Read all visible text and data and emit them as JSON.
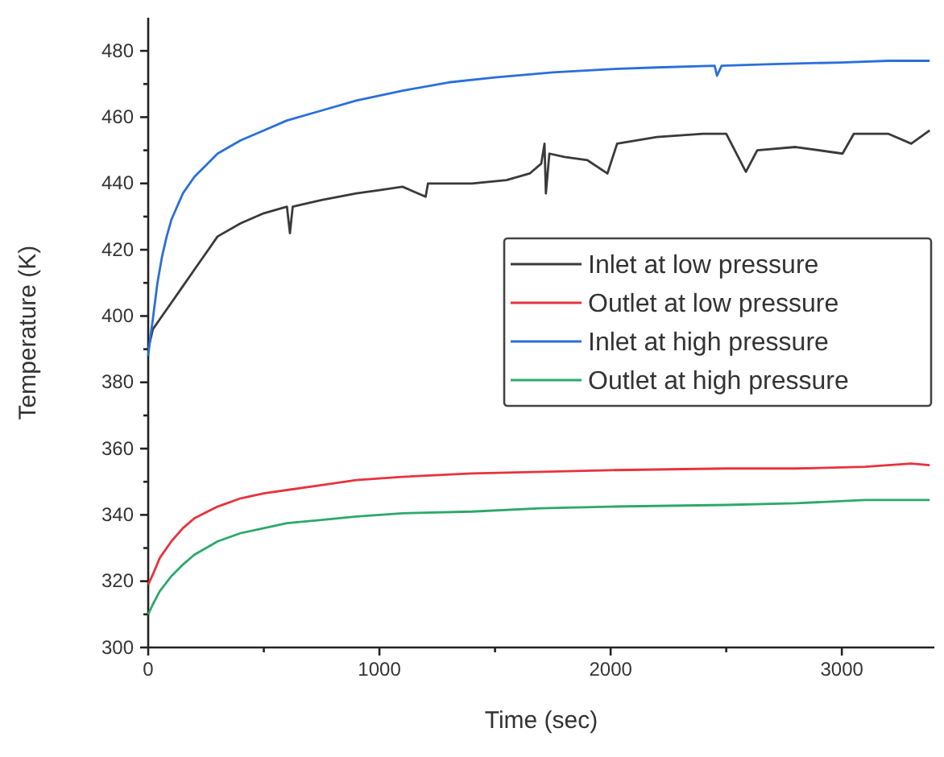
{
  "chart_data": {
    "type": "line",
    "xlabel": "Time (sec)",
    "ylabel": "Temperature (K)",
    "xlim": [
      0,
      3400
    ],
    "ylim": [
      300,
      490
    ],
    "xticks": [
      0,
      {
        "value": 500,
        "label": null
      },
      1000,
      {
        "value": 1500,
        "label": null
      },
      2000,
      {
        "value": 2500,
        "label": null
      },
      3000
    ],
    "yticks": [
      300,
      {
        "value": 310,
        "label": null
      },
      320,
      {
        "value": 330,
        "label": null
      },
      340,
      {
        "value": 350,
        "label": null
      },
      360,
      {
        "value": 370,
        "label": null
      },
      380,
      {
        "value": 390,
        "label": null
      },
      400,
      {
        "value": 410,
        "label": null
      },
      420,
      {
        "value": 430,
        "label": null
      },
      440,
      {
        "value": 450,
        "label": null
      },
      460,
      {
        "value": 470,
        "label": null
      },
      480
    ],
    "grid": false,
    "legend": "right",
    "marker": "none",
    "line_style": "solid",
    "series": [
      {
        "name": "Inlet at low pressure",
        "color": "#3a3a3a",
        "x": [
          0,
          20,
          50,
          100,
          150,
          200,
          250,
          300,
          400,
          500,
          600,
          613,
          625,
          750,
          900,
          1000,
          1100,
          1200,
          1210,
          1300,
          1400,
          1550,
          1650,
          1700,
          1714,
          1720,
          1735,
          1800,
          1900,
          1986,
          2028,
          2200,
          2400,
          2500,
          2585,
          2634,
          2800,
          3003,
          3052,
          3200,
          3300,
          3380
        ],
        "values": [
          390,
          396,
          399,
          404,
          409,
          414,
          419,
          424,
          428,
          431,
          433,
          425,
          433,
          435,
          437,
          438,
          439,
          436,
          440,
          440,
          440,
          441,
          443,
          446,
          452,
          437,
          449,
          448,
          447,
          443,
          452,
          454,
          455,
          455,
          443.5,
          450,
          451,
          449,
          455,
          455,
          452,
          456
        ]
      },
      {
        "name": "Outlet at low pressure",
        "color": "#e8323c",
        "x": [
          0,
          20,
          50,
          100,
          150,
          200,
          300,
          400,
          500,
          600,
          750,
          900,
          1100,
          1400,
          1700,
          2000,
          2500,
          2800,
          3100,
          3300,
          3380
        ],
        "values": [
          319,
          322,
          327,
          332,
          336,
          339,
          342.5,
          345,
          346.5,
          347.5,
          349,
          350.5,
          351.5,
          352.5,
          353,
          353.5,
          354,
          354,
          354.5,
          355.5,
          355
        ]
      },
      {
        "name": "Inlet at high pressure",
        "color": "#2a6fdb",
        "x": [
          0,
          10,
          20,
          40,
          60,
          80,
          100,
          150,
          200,
          300,
          400,
          500,
          600,
          750,
          900,
          1100,
          1300,
          1500,
          1750,
          2000,
          2200,
          2450,
          2460,
          2480,
          2700,
          3000,
          3200,
          3380
        ],
        "values": [
          388,
          394,
          399,
          410,
          418,
          424,
          429,
          437,
          442,
          449,
          453,
          456,
          459,
          462,
          465,
          468,
          470.5,
          472,
          473.5,
          474.5,
          475,
          475.5,
          472.5,
          475.5,
          476,
          476.5,
          477,
          477
        ]
      },
      {
        "name": "Outlet at high pressure",
        "color": "#2ca86a",
        "x": [
          0,
          20,
          50,
          100,
          150,
          200,
          300,
          400,
          500,
          600,
          750,
          900,
          1100,
          1400,
          1700,
          2000,
          2500,
          2800,
          3100,
          3380
        ],
        "values": [
          310,
          313,
          317,
          321.5,
          325,
          328,
          332,
          334.5,
          336,
          337.5,
          338.5,
          339.5,
          340.5,
          341,
          342,
          342.5,
          343,
          343.5,
          344.5,
          344.5
        ]
      }
    ]
  }
}
